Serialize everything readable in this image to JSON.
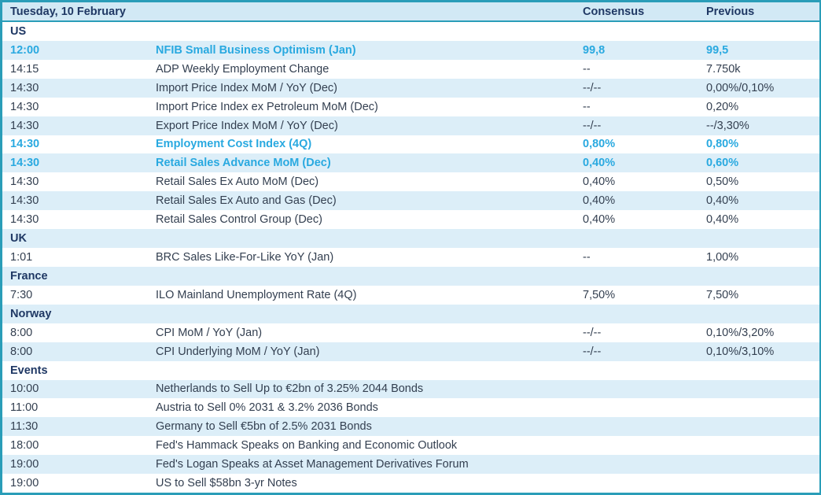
{
  "table": {
    "date_header": "Tuesday, 10 February",
    "columns": {
      "consensus": "Consensus",
      "previous": "Previous"
    },
    "colors": {
      "border_teal": "#2a9db8",
      "header_bg": "#d2e9f5",
      "alt_row_bg": "#dceef8",
      "navy_text": "#1f3864",
      "body_text": "#333f50",
      "highlight_cyan": "#29a9e0"
    },
    "sections": [
      {
        "name": "US",
        "rows": [
          {
            "time": "12:00",
            "event": "NFIB Small Business Optimism (Jan)",
            "consensus": "99,8",
            "previous": "99,5",
            "highlight": true
          },
          {
            "time": "14:15",
            "event": "ADP Weekly Employment Change",
            "consensus": "--",
            "previous": "7.750k",
            "highlight": false
          },
          {
            "time": "14:30",
            "event": "Import Price Index MoM / YoY (Dec)",
            "consensus": "--/--",
            "previous": "0,00%/0,10%",
            "highlight": false
          },
          {
            "time": "14:30",
            "event": "Import Price Index ex Petroleum MoM (Dec)",
            "consensus": "--",
            "previous": "0,20%",
            "highlight": false
          },
          {
            "time": "14:30",
            "event": "Export Price Index MoM / YoY (Dec)",
            "consensus": "--/--",
            "previous": "--/3,30%",
            "highlight": false
          },
          {
            "time": "14:30",
            "event": "Employment Cost Index (4Q)",
            "consensus": "0,80%",
            "previous": "0,80%",
            "highlight": true
          },
          {
            "time": "14:30",
            "event": "Retail Sales Advance MoM (Dec)",
            "consensus": "0,40%",
            "previous": "0,60%",
            "highlight": true
          },
          {
            "time": "14:30",
            "event": "Retail Sales Ex Auto MoM (Dec)",
            "consensus": "0,40%",
            "previous": "0,50%",
            "highlight": false
          },
          {
            "time": "14:30",
            "event": "Retail Sales Ex Auto and Gas (Dec)",
            "consensus": "0,40%",
            "previous": "0,40%",
            "highlight": false
          },
          {
            "time": "14:30",
            "event": "Retail Sales Control Group (Dec)",
            "consensus": "0,40%",
            "previous": "0,40%",
            "highlight": false
          }
        ]
      },
      {
        "name": "UK",
        "rows": [
          {
            "time": "1:01",
            "event": "BRC Sales Like-For-Like YoY (Jan)",
            "consensus": "--",
            "previous": "1,00%",
            "highlight": false
          }
        ]
      },
      {
        "name": "France",
        "rows": [
          {
            "time": "7:30",
            "event": "ILO Mainland Unemployment Rate (4Q)",
            "consensus": "7,50%",
            "previous": "7,50%",
            "highlight": false
          }
        ]
      },
      {
        "name": "Norway",
        "rows": [
          {
            "time": "8:00",
            "event": "CPI MoM / YoY (Jan)",
            "consensus": "--/--",
            "previous": "0,10%/3,20%",
            "highlight": false
          },
          {
            "time": "8:00",
            "event": "CPI Underlying MoM / YoY (Jan)",
            "consensus": "--/--",
            "previous": "0,10%/3,10%",
            "highlight": false
          }
        ]
      },
      {
        "name": "Events",
        "rows": [
          {
            "time": "10:00",
            "event": "Netherlands to Sell Up to €2bn of 3.25% 2044 Bonds",
            "consensus": "",
            "previous": "",
            "highlight": false
          },
          {
            "time": "11:00",
            "event": "Austria to Sell 0% 2031 & 3.2% 2036 Bonds",
            "consensus": "",
            "previous": "",
            "highlight": false
          },
          {
            "time": "11:30",
            "event": "Germany to Sell €5bn of 2.5% 2031 Bonds",
            "consensus": "",
            "previous": "",
            "highlight": false
          },
          {
            "time": "18:00",
            "event": "Fed's Hammack Speaks on Banking and Economic Outlook",
            "consensus": "",
            "previous": "",
            "highlight": false
          },
          {
            "time": "19:00",
            "event": "Fed's Logan Speaks at Asset Management Derivatives Forum",
            "consensus": "",
            "previous": "",
            "highlight": false
          },
          {
            "time": "19:00",
            "event": "US to Sell $58bn 3-yr Notes",
            "consensus": "",
            "previous": "",
            "highlight": false
          }
        ]
      }
    ]
  }
}
